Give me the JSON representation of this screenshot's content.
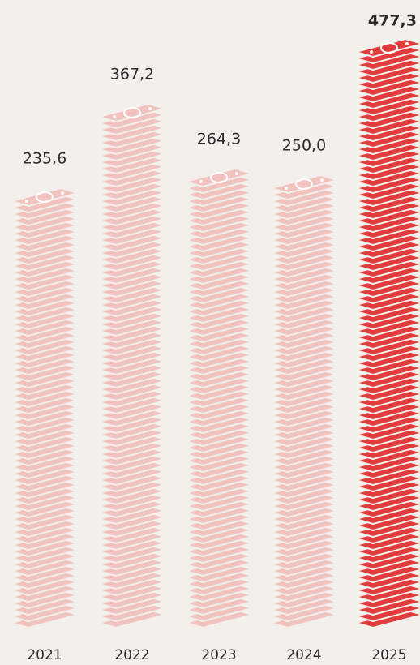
{
  "chart_data": {
    "type": "bar",
    "categories": [
      "2021",
      "2022",
      "2023",
      "2024",
      "2025"
    ],
    "values": [
      235.6,
      367.2,
      264.3,
      250.0,
      477.3
    ],
    "value_labels": [
      "235,6",
      "367,2",
      "264,3",
      "250,0",
      "477,3"
    ],
    "colors": [
      "#f2c2bf",
      "#f2c2bf",
      "#f2c2bf",
      "#f2c2bf",
      "#e23b3b"
    ]
  }
}
